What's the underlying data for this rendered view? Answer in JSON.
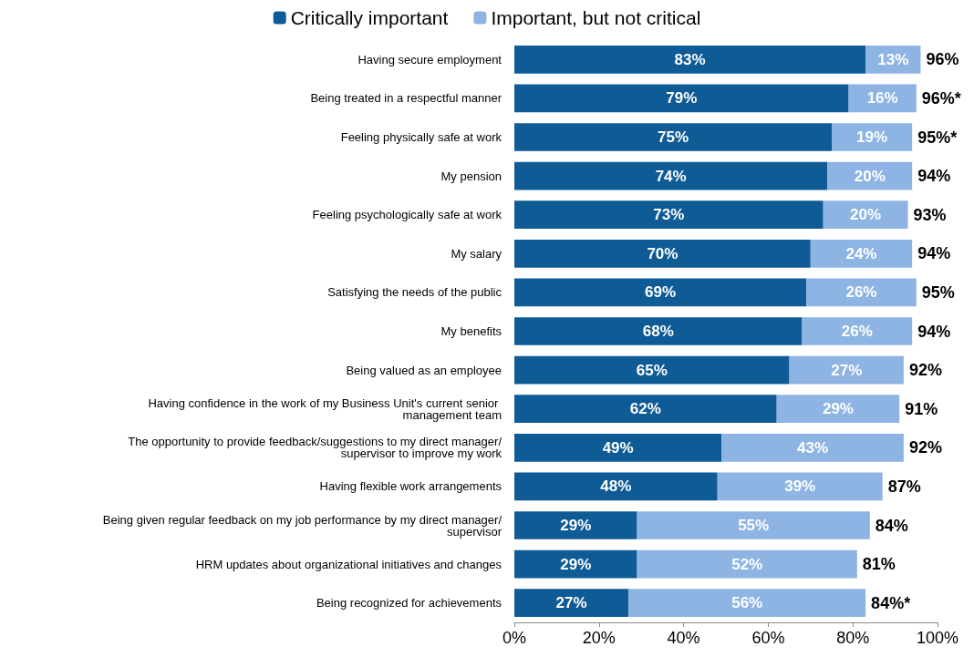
{
  "chart_data": {
    "type": "bar",
    "orientation": "horizontal",
    "stacked": true,
    "categories": [
      "Having secure employment",
      "Being treated in a respectful manner",
      "Feeling physically safe at work",
      "My pension",
      "Feeling psychologically safe at work",
      "My salary",
      "Satisfying the needs of the public",
      "My benefits",
      "Being valued as an employee",
      "Having confidence in the work of my Business Unit's current senior management team",
      "The opportunity to provide feedback/suggestions to my direct manager/supervisor to improve my work",
      "Having flexible work arrangements",
      "Being given regular feedback on my job performance by my direct manager/supervisor",
      "HRM updates about organizational initiatives and changes",
      "Being recognized for achievements"
    ],
    "series": [
      {
        "name": "Critically important",
        "color": "#0f5b96",
        "values": [
          83,
          79,
          75,
          74,
          73,
          70,
          69,
          68,
          65,
          62,
          49,
          48,
          29,
          29,
          27
        ],
        "value_labels": [
          "83%",
          "79%",
          "75%",
          "74%",
          "73%",
          "70%",
          "69%",
          "68%",
          "65%",
          "62%",
          "49%",
          "48%",
          "29%",
          "29%",
          "27%"
        ]
      },
      {
        "name": "Important, but not critical",
        "color": "#8db4e2",
        "values": [
          13,
          16,
          19,
          20,
          20,
          24,
          26,
          26,
          27,
          29,
          43,
          39,
          55,
          52,
          56
        ],
        "value_labels": [
          "13%",
          "16%",
          "19%",
          "20%",
          "20%",
          "24%",
          "26%",
          "26%",
          "27%",
          "29%",
          "43%",
          "39%",
          "55%",
          "52%",
          "56%"
        ]
      }
    ],
    "totals": [
      "96%",
      "96%*",
      "95%*",
      "94%",
      "93%",
      "94%",
      "95%",
      "94%",
      "92%",
      "91%",
      "92%",
      "87%",
      "84%",
      "81%",
      "84%*"
    ],
    "xlim": [
      0,
      100
    ],
    "xticks": [
      {
        "value": 0,
        "label": "0%"
      },
      {
        "value": 20,
        "label": "20%"
      },
      {
        "value": 40,
        "label": "40%"
      },
      {
        "value": 60,
        "label": "60%"
      },
      {
        "value": 80,
        "label": "80%"
      },
      {
        "value": 100,
        "label": "100%"
      }
    ],
    "grid": false,
    "legend": "top"
  }
}
